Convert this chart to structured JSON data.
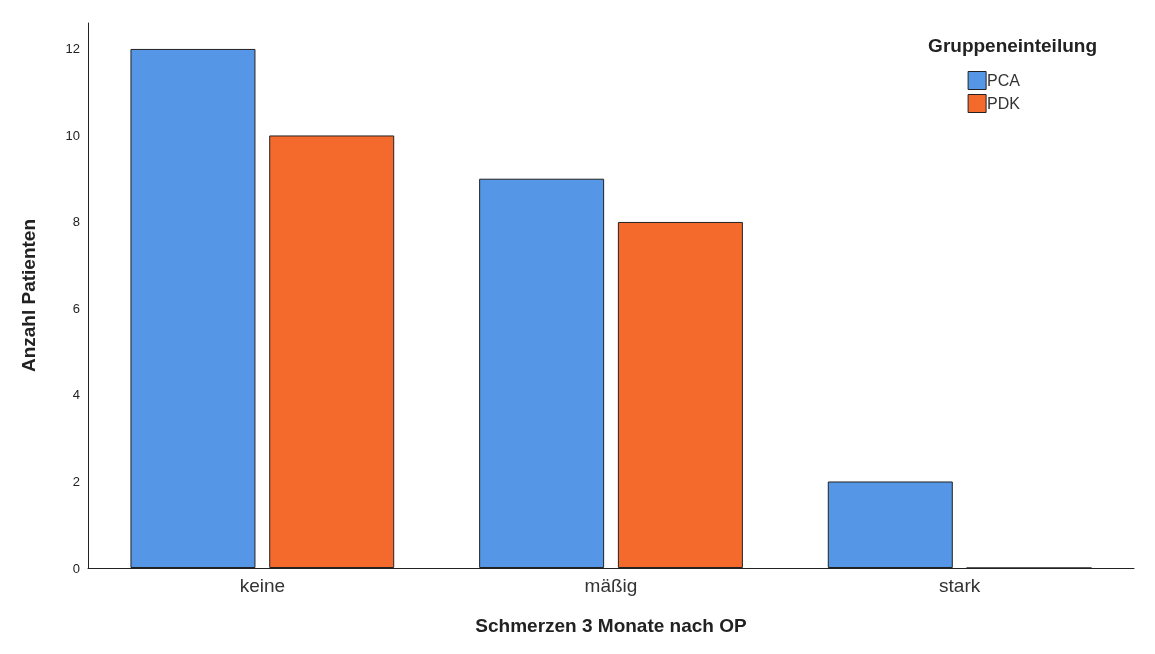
{
  "chart_data": {
    "type": "bar",
    "xlabel": "Schmerzen 3 Monate nach OP",
    "ylabel": "Anzahl Patienten",
    "legend_title": "Gruppeneinteilung",
    "categories": [
      "keine",
      "mäßig",
      "stark"
    ],
    "series": [
      {
        "name": "PCA",
        "color": "#5596e6",
        "values": [
          12,
          9,
          2
        ]
      },
      {
        "name": "PDK",
        "color": "#f46a2c",
        "values": [
          10,
          8,
          0
        ]
      }
    ],
    "ylim": [
      0,
      12.6
    ],
    "yticks": [
      0,
      2,
      4,
      6,
      8,
      10,
      12
    ],
    "grid": false,
    "legend": "top right"
  }
}
